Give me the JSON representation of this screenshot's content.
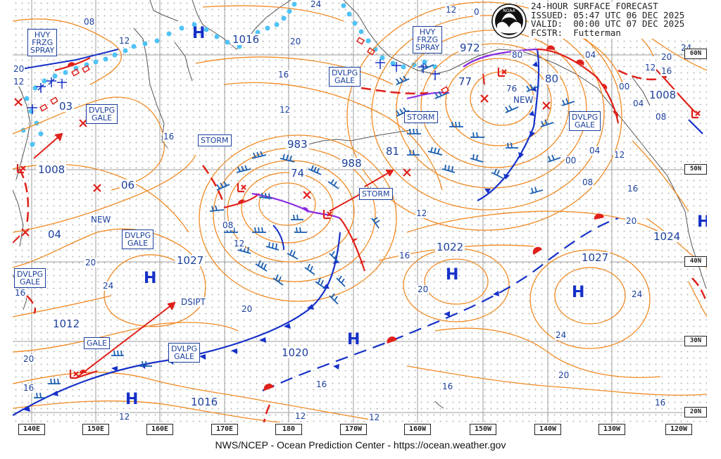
{
  "header": {
    "title": "24-HOUR SURFACE FORECAST",
    "issued": "ISSUED: 05:47 UTC 06 DEC 2025",
    "valid": "VALID:  00:00 UTC 07 DEC 2025",
    "forecaster": "FCSTR:  Futterman",
    "logo_text": "NOAA"
  },
  "footer": {
    "credit": "NWS/NCEP - Ocean Prediction Center - https://ocean.weather.gov"
  },
  "longitude_labels": [
    "140E",
    "150E",
    "160E",
    "170E",
    "180",
    "170W",
    "160W",
    "150W",
    "140W",
    "130W",
    "120W"
  ],
  "latitude_labels": [
    "60N",
    "50N",
    "40N",
    "30N",
    "20N"
  ],
  "colors": {
    "isobar": "#f08a24",
    "cold_front": "#1530c8",
    "warm_front": "#e0201a",
    "occluded": "#8a2be2",
    "wind_barb": "#1b5fb0",
    "ice": "#4fc3f7",
    "label": "#1b3f9c"
  },
  "warning_boxes": {
    "hvy_frzg_spray_1": "HVY\nFRZG\nSPRAY",
    "hvy_frzg_spray_2": "HVY\nFRZG\nSPRAY",
    "dvlpg_gale_nw": "DVLPG\nGALE",
    "dvlpg_gale_bering": "DVLPG\nGALE",
    "dvlpg_gale_gulf": "DVLPG\nGALE",
    "dvlpg_gale_mid": "DVLPG\nGALE",
    "dvlpg_gale_west": "DVLPG\nGALE",
    "dvlpg_gale_south": "DVLPG\nGALE",
    "storm_1": "STORM",
    "storm_2": "STORM",
    "storm_3": "STORM",
    "gale": "GALE"
  },
  "pressure_values": {
    "p1016a": "1016",
    "p983": "983",
    "p988": "988",
    "p972": "972",
    "p1008a": "1008",
    "p1008b": "1008",
    "p1027a": "1027",
    "p1027b": "1027",
    "p1022": "1022",
    "p1024": "1024",
    "p1012": "1012",
    "p1020": "1020",
    "p1016b": "1016",
    "p03": "03",
    "p06": "06",
    "p04": "04",
    "p74": "74",
    "p81": "81",
    "p77": "77",
    "p80": "80"
  },
  "isobar_labels": {
    "i08a": "08",
    "i12a": "12",
    "i24a": "24",
    "i20a": "20",
    "i16a": "16",
    "i12b": "12",
    "i16b": "16",
    "i0": "0",
    "i12c": "12",
    "i80": "80",
    "i04a": "04",
    "i20b": "20",
    "i24b": "24",
    "i76": "76",
    "i00a": "00",
    "i16c": "16",
    "i12d": "12",
    "i04b": "04",
    "i08b": "08",
    "i12e": "12",
    "i00b": "00",
    "i04c": "04",
    "i08c": "08",
    "i16d": "16",
    "i12f": "12",
    "i20c": "20",
    "i20d": "20",
    "i24c": "24",
    "i20e": "20",
    "i16e": "16",
    "i08d": "08",
    "i12g": "12",
    "i20f": "20",
    "i16f": "16",
    "i24d": "24",
    "i20g": "20",
    "i20h": "20",
    "i16g": "16",
    "i16h": "16",
    "i16i": "16",
    "i12h": "12",
    "i12i": "12",
    "i12j": "12",
    "i20i": "20"
  },
  "text_labels": {
    "new1": "NEW",
    "new2": "NEW",
    "dsipt": "DSIPT"
  },
  "high_symbol": "H"
}
